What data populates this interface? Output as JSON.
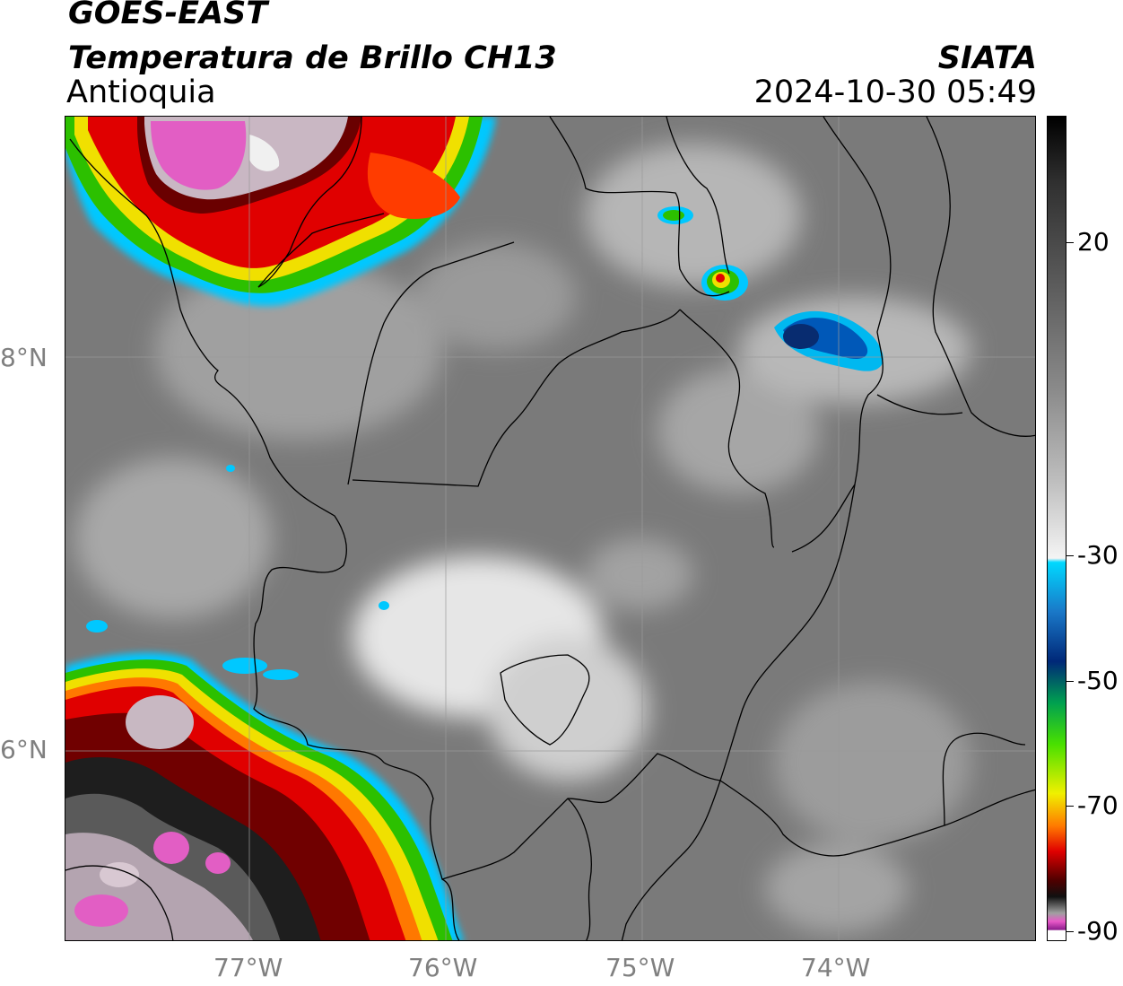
{
  "header": {
    "satellite": "GOES-EAST",
    "product": "Temperatura de Brillo CH13",
    "region": "Antioquia",
    "agency": "SIATA",
    "datetime": "2024-10-30 05:49"
  },
  "map": {
    "lat_labels": [
      "8°N",
      "6°N"
    ],
    "lon_labels": [
      "77°W",
      "76°W",
      "75°W",
      "74°W"
    ]
  },
  "colorbar": {
    "tick_labels": [
      "20",
      "-30",
      "-50",
      "-70",
      "-90"
    ],
    "colors": {
      "warm_gray": "#7d7d7d",
      "light": "#f4f4f4",
      "cyan": "#00d8ff",
      "blue": "#0048a8",
      "green": "#2cc000",
      "yellow": "#f0f000",
      "orange": "#ff7800",
      "red": "#e00000",
      "dark_red": "#600000",
      "black": "#101010",
      "pink": "#e858c8",
      "purple": "#8c1c8c"
    }
  }
}
